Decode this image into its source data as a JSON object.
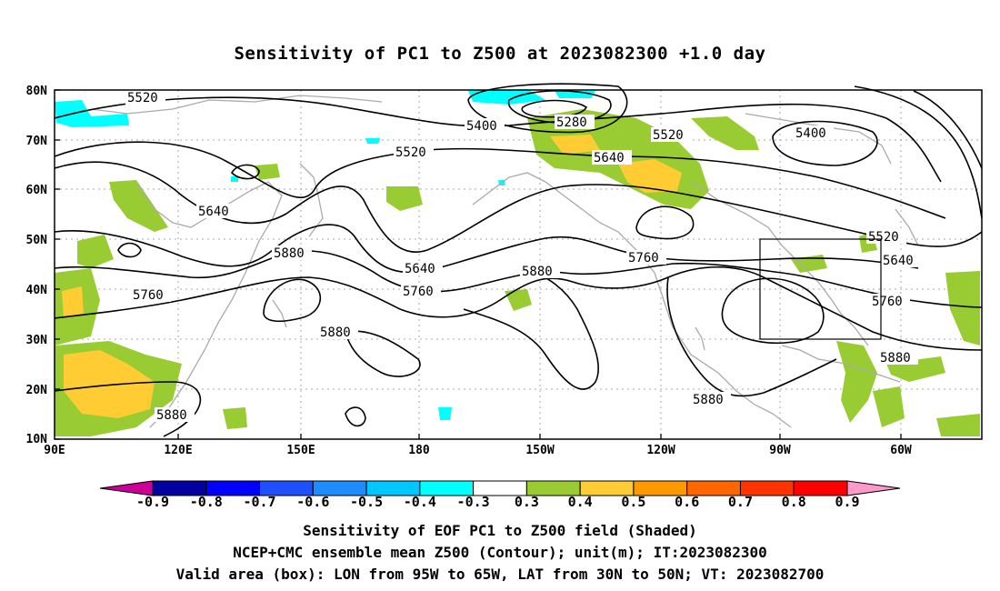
{
  "title": "Sensitivity of PC1 to Z500 at 2023082300 +1.0 day",
  "map": {
    "lat_labels": [
      "80N",
      "70N",
      "60N",
      "50N",
      "40N",
      "30N",
      "20N",
      "10N"
    ],
    "lon_labels": [
      "90E",
      "120E",
      "150E",
      "180",
      "150W",
      "120W",
      "90W",
      "60W"
    ],
    "contour_labels": [
      {
        "text": "5520",
        "id": "c1"
      },
      {
        "text": "5400",
        "id": "c2"
      },
      {
        "text": "5280",
        "id": "c3"
      },
      {
        "text": "5520",
        "id": "c4"
      },
      {
        "text": "5400",
        "id": "c5"
      },
      {
        "text": "5520",
        "id": "c6"
      },
      {
        "text": "5640",
        "id": "c7"
      },
      {
        "text": "5640",
        "id": "c8"
      },
      {
        "text": "5880",
        "id": "c9"
      },
      {
        "text": "5640",
        "id": "c10"
      },
      {
        "text": "5760",
        "id": "c11"
      },
      {
        "text": "5760",
        "id": "c12"
      },
      {
        "text": "5880",
        "id": "c13"
      },
      {
        "text": "5760",
        "id": "c14"
      },
      {
        "text": "5520",
        "id": "c15"
      },
      {
        "text": "5640",
        "id": "c16"
      },
      {
        "text": "5760",
        "id": "c17"
      },
      {
        "text": "5880",
        "id": "c18"
      },
      {
        "text": "5880",
        "id": "c19"
      },
      {
        "text": "5880",
        "id": "c20"
      },
      {
        "text": "5880",
        "id": "c21"
      }
    ],
    "valid_box": {
      "lon_west": "95W",
      "lon_east": "65W",
      "lat_south": "30N",
      "lat_north": "50N"
    }
  },
  "colorbar": {
    "labels": [
      "-0.9",
      "-0.8",
      "-0.7",
      "-0.6",
      "-0.5",
      "-0.4",
      "-0.3",
      "0.3",
      "0.4",
      "0.5",
      "0.6",
      "0.7",
      "0.8",
      "0.9"
    ],
    "colors": [
      "#0000a0",
      "#0000ff",
      "#1e50ff",
      "#1e8cff",
      "#00c8ff",
      "#00ffff",
      "#ffffff",
      "#99cc33",
      "#ffcc33",
      "#ff9900",
      "#ff6600",
      "#ff3300",
      "#ff0000"
    ],
    "min_arrow_color": "#cc0099",
    "max_arrow_color": "#ff99cc"
  },
  "footer": {
    "line1": "Sensitivity of EOF PC1 to Z500 field (Shaded)",
    "line2": "NCEP+CMC ensemble mean Z500 (Contour); unit(m); IT:2023082300",
    "line3": "Valid area (box): LON from 95W to 65W, LAT from 30N to 50N; VT: 2023082700"
  }
}
